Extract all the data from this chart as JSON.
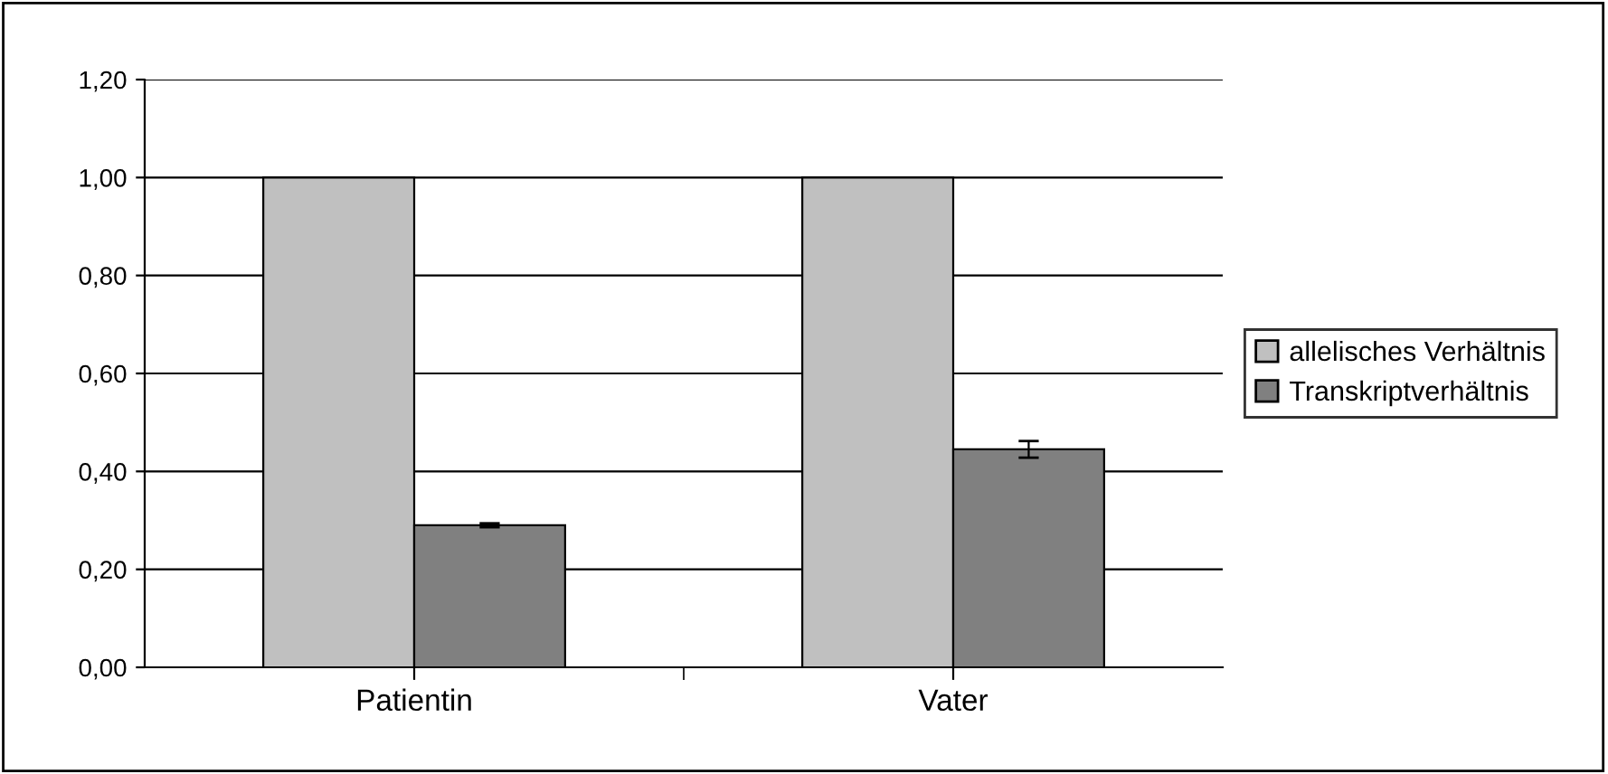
{
  "chart_data": {
    "type": "bar",
    "categories": [
      "Patientin",
      "Vater"
    ],
    "series": [
      {
        "name": "allelisches Verhältnis",
        "color": "#c0c0c0",
        "values": [
          1.0,
          1.0
        ]
      },
      {
        "name": "Transkriptverhältnis",
        "color": "#808080",
        "values": [
          0.29,
          0.445
        ],
        "errors": [
          0.004,
          0.017
        ]
      }
    ],
    "ylim": [
      0,
      1.2
    ],
    "yticks": [
      {
        "value": 0,
        "label": "0,00"
      },
      {
        "value": 0.2,
        "label": "0,20"
      },
      {
        "value": 0.4,
        "label": "0,40"
      },
      {
        "value": 0.6,
        "label": "0,60"
      },
      {
        "value": 0.8,
        "label": "0,80"
      },
      {
        "value": 1.0,
        "label": "1,00"
      },
      {
        "value": 1.2,
        "label": "1,20"
      }
    ],
    "grid": "y",
    "legend": "right"
  }
}
